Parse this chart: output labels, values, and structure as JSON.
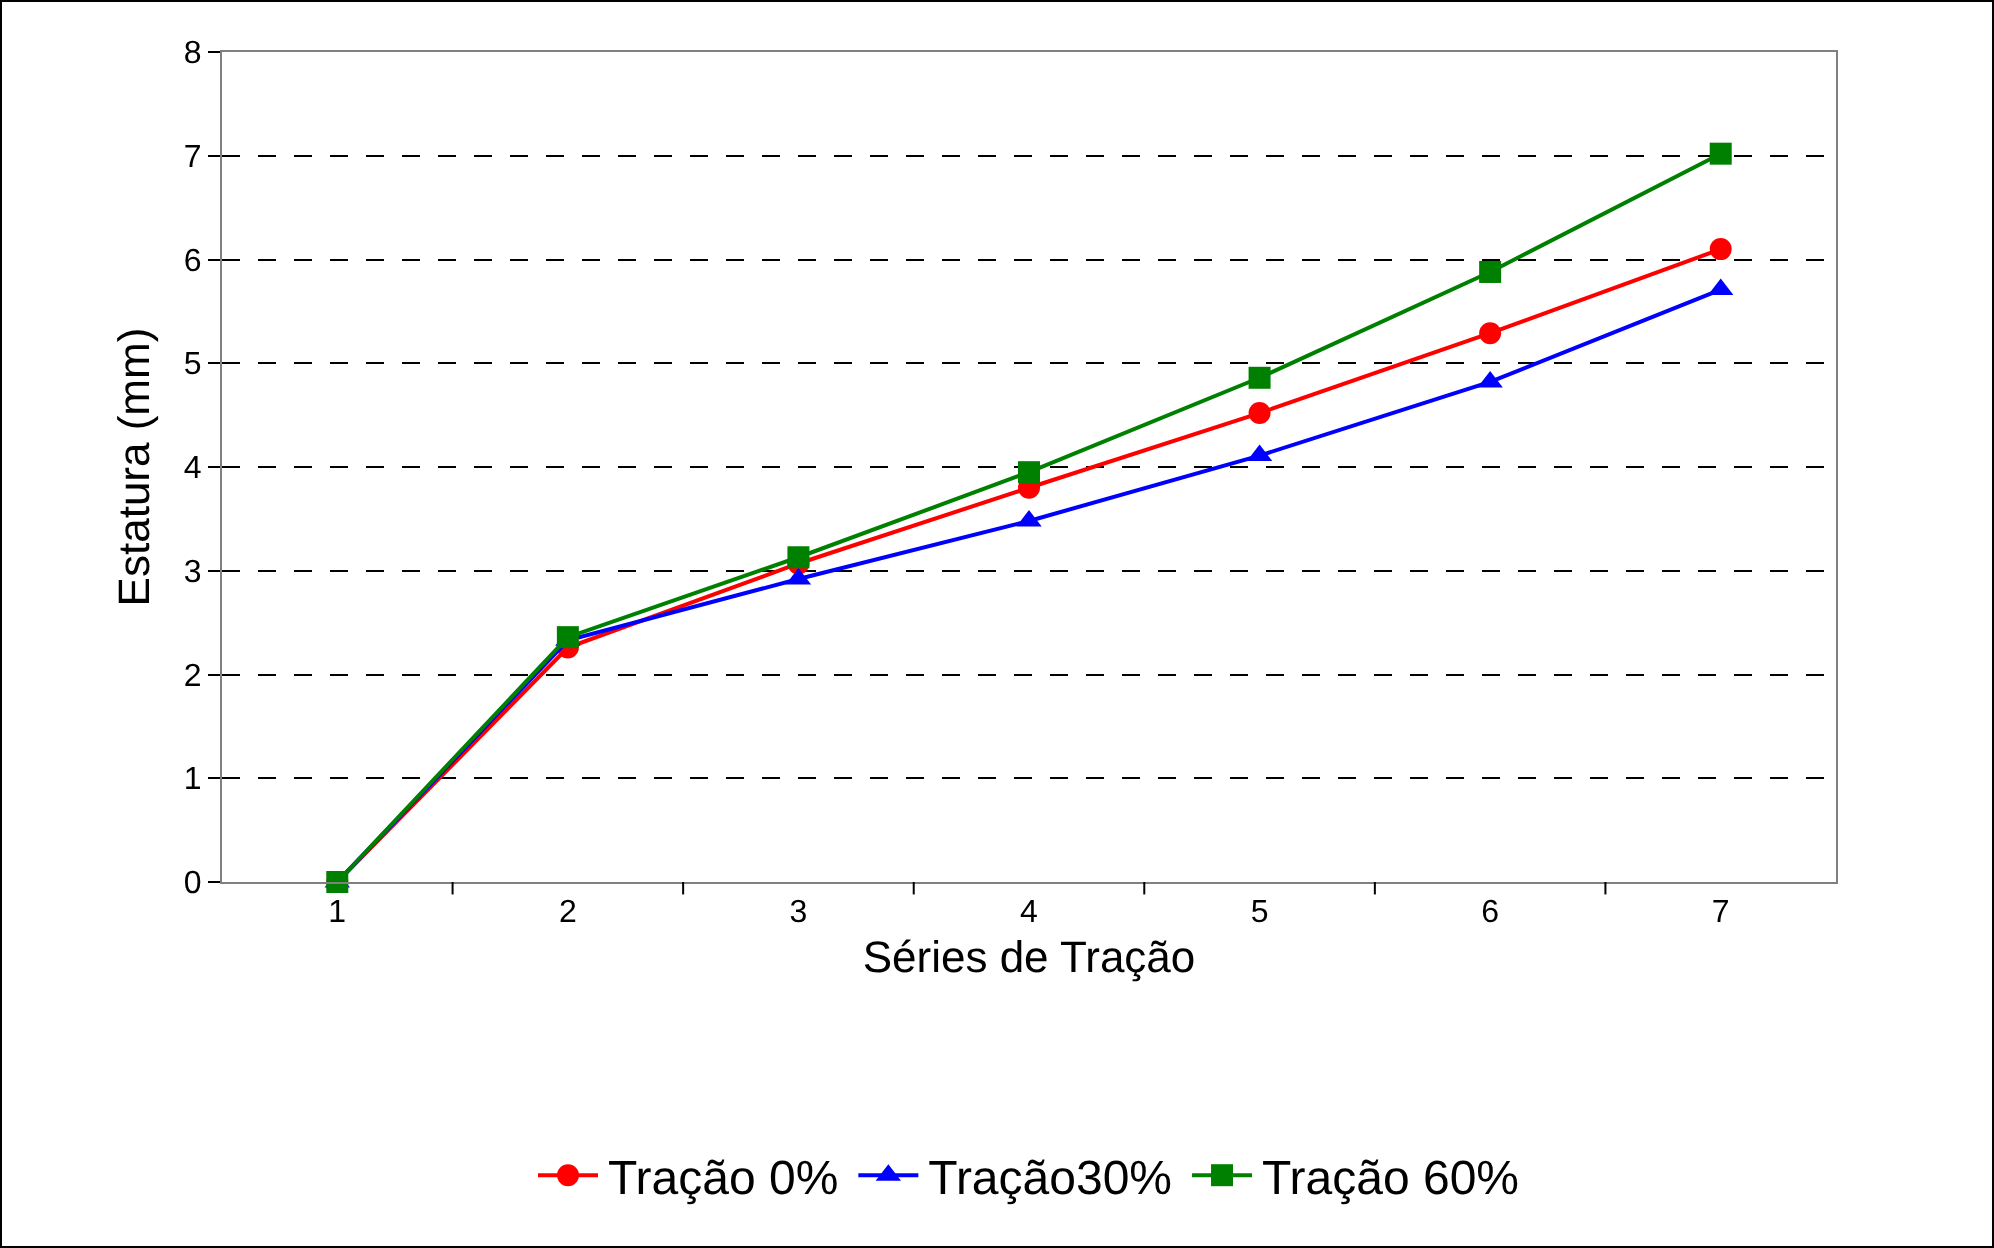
{
  "chart_data": {
    "type": "line",
    "xlabel": "Séries de Tração",
    "ylabel": "Estatura (mm)",
    "categories": [
      "1",
      "2",
      "3",
      "4",
      "5",
      "6",
      "7"
    ],
    "ylim": [
      0,
      8
    ],
    "yticks": [
      0,
      1,
      2,
      3,
      4,
      5,
      6,
      7,
      8
    ],
    "grid": "y",
    "legend": "bottom",
    "line_style": "solid",
    "series": [
      {
        "name": "Tração 0%",
        "color": "#ff0000",
        "marker": "circle",
        "values": [
          0,
          2.26,
          3.07,
          3.8,
          4.52,
          5.29,
          6.1
        ]
      },
      {
        "name": "Tração30%",
        "color": "#0000ff",
        "marker": "triangle",
        "values": [
          0,
          2.33,
          2.92,
          3.48,
          4.11,
          4.82,
          5.71
        ]
      },
      {
        "name": "Tração 60%",
        "color": "#008000",
        "marker": "square",
        "values": [
          0,
          2.36,
          3.13,
          3.95,
          4.86,
          5.88,
          7.02
        ]
      }
    ]
  }
}
